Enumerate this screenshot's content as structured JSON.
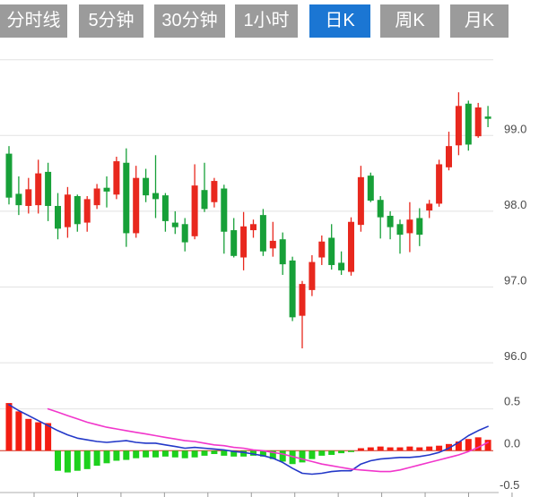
{
  "toolbar": {
    "tabs": [
      {
        "label": "分时线",
        "active": false
      },
      {
        "label": "5分钟",
        "active": false
      },
      {
        "label": "30分钟",
        "active": false
      },
      {
        "label": "1小时",
        "active": false
      },
      {
        "label": "日K",
        "active": true
      },
      {
        "label": "周K",
        "active": false
      },
      {
        "label": "月K",
        "active": false
      }
    ],
    "tab_bg_color": "#9b9b9b",
    "tab_active_color": "#1b76d3",
    "tab_text_color": "#ffffff"
  },
  "chart_data": {
    "type": "candlestick+macd",
    "price_axis": {
      "tick_labels": [
        "99.0",
        "98.0",
        "97.0",
        "96.0"
      ],
      "tick_values": [
        99.0,
        98.0,
        97.0,
        96.0
      ],
      "gridline_values": [
        100.0,
        99.0,
        98.0,
        97.0,
        96.0
      ],
      "range": [
        95.8,
        100.1
      ]
    },
    "candles_ohlc": [
      [
        98.76,
        98.86,
        98.09,
        98.18
      ],
      [
        98.23,
        98.46,
        97.95,
        98.08
      ],
      [
        98.07,
        98.44,
        97.97,
        98.29
      ],
      [
        98.08,
        98.68,
        97.97,
        98.5
      ],
      [
        98.52,
        98.64,
        97.87,
        98.07
      ],
      [
        98.07,
        98.24,
        97.63,
        97.77
      ],
      [
        97.79,
        98.32,
        97.65,
        98.22
      ],
      [
        98.2,
        98.22,
        97.73,
        97.83
      ],
      [
        97.85,
        98.2,
        97.73,
        98.16
      ],
      [
        98.08,
        98.36,
        98.03,
        98.3
      ],
      [
        98.31,
        98.46,
        98.05,
        98.26
      ],
      [
        98.22,
        98.72,
        98.16,
        98.66
      ],
      [
        98.64,
        98.83,
        97.53,
        97.71
      ],
      [
        97.71,
        98.6,
        97.65,
        98.44
      ],
      [
        98.44,
        98.56,
        98.12,
        98.21
      ],
      [
        98.24,
        98.74,
        97.91,
        98.16
      ],
      [
        98.21,
        98.24,
        97.73,
        97.87
      ],
      [
        97.85,
        98.0,
        97.7,
        97.79
      ],
      [
        97.83,
        97.91,
        97.47,
        97.59
      ],
      [
        97.67,
        98.62,
        97.63,
        98.34
      ],
      [
        98.28,
        98.64,
        97.99,
        98.03
      ],
      [
        98.12,
        98.44,
        98.05,
        98.4
      ],
      [
        98.3,
        98.35,
        97.44,
        97.73
      ],
      [
        97.75,
        97.91,
        97.39,
        97.41
      ],
      [
        97.39,
        97.99,
        97.22,
        97.8
      ],
      [
        97.75,
        97.89,
        97.65,
        97.83
      ],
      [
        97.95,
        98.03,
        97.41,
        97.47
      ],
      [
        97.51,
        97.86,
        97.4,
        97.61
      ],
      [
        97.63,
        97.72,
        97.16,
        97.3
      ],
      [
        97.35,
        97.4,
        96.55,
        96.6
      ],
      [
        96.62,
        97.08,
        96.19,
        97.04
      ],
      [
        96.96,
        97.42,
        96.88,
        97.33
      ],
      [
        97.39,
        97.68,
        97.29,
        97.6
      ],
      [
        97.65,
        97.83,
        97.23,
        97.29
      ],
      [
        97.32,
        97.47,
        97.16,
        97.22
      ],
      [
        97.2,
        97.92,
        97.15,
        97.86
      ],
      [
        97.82,
        98.6,
        97.73,
        98.45
      ],
      [
        98.47,
        98.51,
        98.12,
        98.14
      ],
      [
        98.15,
        98.2,
        97.64,
        97.92
      ],
      [
        97.94,
        98.0,
        97.63,
        97.79
      ],
      [
        97.83,
        97.89,
        97.44,
        97.69
      ],
      [
        97.71,
        98.12,
        97.46,
        97.89
      ],
      [
        97.91,
        98.04,
        97.54,
        97.69
      ],
      [
        98.01,
        98.15,
        97.91,
        98.1
      ],
      [
        98.1,
        98.68,
        98.06,
        98.62
      ],
      [
        98.58,
        99.05,
        98.54,
        98.86
      ],
      [
        98.87,
        99.57,
        98.74,
        99.39
      ],
      [
        99.42,
        99.46,
        98.8,
        98.88
      ],
      [
        98.99,
        99.43,
        98.97,
        99.37
      ],
      [
        99.25,
        99.39,
        99.11,
        99.22
      ]
    ],
    "macd": {
      "axis_tick_labels": [
        "0.5",
        "0.0",
        "-0.5"
      ],
      "axis_tick_values": [
        0.5,
        0.0,
        -0.5
      ],
      "range": [
        -0.5,
        0.5
      ],
      "histogram": [
        0.57,
        0.47,
        0.38,
        0.34,
        0.33,
        -0.24,
        -0.26,
        -0.24,
        -0.22,
        -0.18,
        -0.15,
        -0.12,
        -0.11,
        -0.09,
        -0.08,
        -0.08,
        -0.07,
        -0.08,
        -0.09,
        -0.08,
        -0.06,
        -0.04,
        -0.06,
        -0.07,
        -0.07,
        -0.06,
        -0.07,
        -0.1,
        -0.13,
        -0.16,
        -0.14,
        -0.1,
        -0.06,
        -0.05,
        -0.03,
        -0.01,
        0.03,
        0.04,
        0.05,
        0.04,
        0.04,
        0.05,
        0.04,
        0.05,
        0.06,
        0.08,
        0.11,
        0.14,
        0.16,
        0.13
      ],
      "dif_line": [
        0.55,
        0.48,
        0.42,
        0.36,
        0.3,
        0.24,
        0.19,
        0.15,
        0.13,
        0.11,
        0.1,
        0.11,
        0.12,
        0.1,
        0.09,
        0.09,
        0.07,
        0.05,
        0.03,
        0.04,
        0.03,
        0.02,
        0.01,
        -0.01,
        -0.02,
        -0.04,
        -0.06,
        -0.09,
        -0.14,
        -0.21,
        -0.27,
        -0.28,
        -0.27,
        -0.25,
        -0.24,
        -0.24,
        -0.16,
        -0.12,
        -0.1,
        -0.09,
        -0.08,
        -0.08,
        -0.07,
        -0.05,
        -0.02,
        0.03,
        0.1,
        0.18,
        0.24,
        0.29
      ],
      "dea_line": [
        null,
        null,
        null,
        null,
        0.5,
        0.46,
        0.42,
        0.38,
        0.34,
        0.31,
        0.28,
        0.26,
        0.24,
        0.22,
        0.2,
        0.18,
        0.16,
        0.14,
        0.12,
        0.11,
        0.09,
        0.07,
        0.06,
        0.04,
        0.03,
        0.01,
        0.0,
        -0.02,
        -0.04,
        -0.07,
        -0.1,
        -0.13,
        -0.16,
        -0.18,
        -0.2,
        -0.22,
        -0.23,
        -0.24,
        -0.25,
        -0.25,
        -0.23,
        -0.2,
        -0.17,
        -0.14,
        -0.11,
        -0.08,
        -0.05,
        -0.01,
        0.04,
        0.1
      ]
    },
    "colors": {
      "candle_up": "#e8281e",
      "candle_down": "#17a038",
      "hist_up": "#f31d12",
      "hist_down": "#1dd11d",
      "dif_line": "#2338c8",
      "dea_line": "#f136cb",
      "gridline": "#e2e2e2",
      "axis_line": "#c9c9c9",
      "tick_mark": "#999999",
      "zero_line": "#d03020",
      "axis_text": "#4a4a4a"
    },
    "legend_position": "none",
    "grid": true
  }
}
